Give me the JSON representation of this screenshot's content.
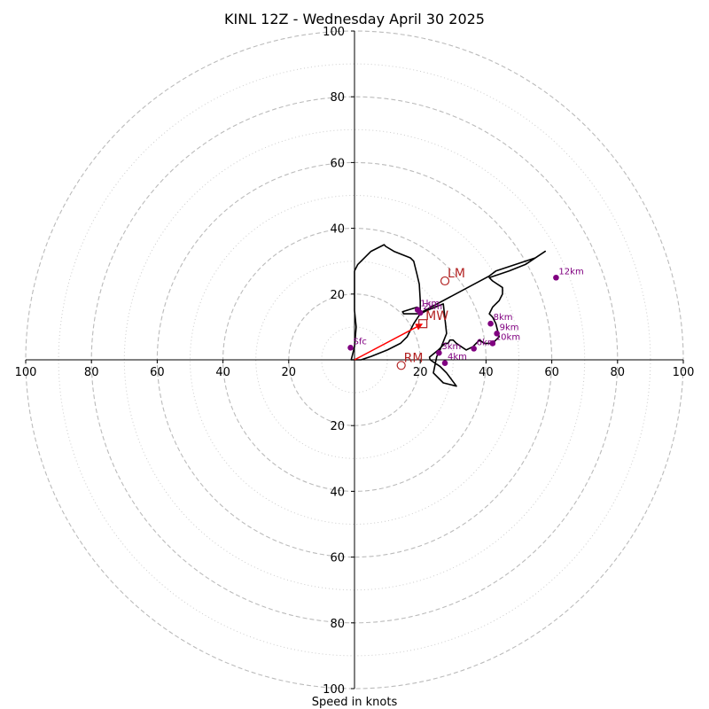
{
  "chart_data": {
    "type": "hodograph",
    "title": "KINL 12Z - Wednesday April 30 2025",
    "xlabel": "Speed in knots",
    "units": "knots",
    "rings": {
      "dashed": [
        20,
        40,
        60,
        80,
        100
      ],
      "dotted": [
        10,
        30,
        50,
        70,
        90
      ]
    },
    "range": [
      -100,
      100
    ],
    "tick_labels": [
      "100",
      "80",
      "60",
      "40",
      "20",
      "20",
      "40",
      "60",
      "80",
      "100"
    ],
    "y_tick_labels": [
      "100",
      "80",
      "60",
      "40",
      "20",
      "20",
      "40",
      "60",
      "80",
      "100"
    ],
    "colors": {
      "trace": "#000000",
      "height_points": "#800080",
      "motion": "#b22222",
      "mean_wind_arrow": "#ff0000",
      "ring": "#bbbbbb"
    },
    "trace": [
      [
        0,
        27
      ],
      [
        0,
        15
      ],
      [
        0.5,
        10
      ],
      [
        0,
        4
      ],
      [
        -1,
        0
      ],
      [
        2,
        0
      ],
      [
        5,
        1
      ],
      [
        10,
        3
      ],
      [
        14,
        5
      ],
      [
        16,
        7
      ],
      [
        18,
        11
      ],
      [
        20,
        14
      ],
      [
        22,
        15
      ],
      [
        27,
        17
      ],
      [
        28,
        8
      ],
      [
        26,
        3
      ],
      [
        25,
        1
      ],
      [
        24,
        -4
      ],
      [
        27,
        -7
      ],
      [
        31,
        -8
      ],
      [
        28,
        -4
      ],
      [
        26,
        -2
      ],
      [
        23,
        0
      ],
      [
        22.8,
        0.8
      ],
      [
        25.5,
        3
      ],
      [
        27.5,
        5
      ],
      [
        28.5,
        5
      ],
      [
        29,
        6
      ],
      [
        30,
        6
      ],
      [
        31,
        5
      ],
      [
        34,
        3
      ],
      [
        36,
        4
      ],
      [
        37,
        5
      ],
      [
        38,
        6
      ],
      [
        39.5,
        5
      ],
      [
        42,
        5
      ],
      [
        44,
        7
      ],
      [
        43,
        11
      ],
      [
        42,
        13
      ],
      [
        41,
        14
      ],
      [
        42,
        16
      ],
      [
        44,
        18
      ],
      [
        45,
        20
      ],
      [
        45,
        22
      ],
      [
        42,
        24
      ],
      [
        41,
        25
      ],
      [
        42.5,
        25.5
      ],
      [
        47,
        27
      ],
      [
        52,
        29
      ],
      [
        58,
        33
      ],
      [
        55,
        31
      ],
      [
        43,
        27
      ],
      [
        41,
        25.5
      ],
      [
        19.5,
        14
      ],
      [
        15,
        14
      ],
      [
        14.6,
        14.6
      ],
      [
        19,
        16
      ],
      [
        20,
        15
      ],
      [
        20,
        18
      ],
      [
        19.7,
        23
      ],
      [
        19,
        26
      ],
      [
        18,
        30
      ],
      [
        17,
        31
      ],
      [
        12,
        33
      ],
      [
        9.5,
        34.5
      ],
      [
        9,
        35
      ],
      [
        5,
        33
      ],
      [
        1,
        29
      ],
      [
        0,
        27
      ]
    ],
    "height_points": [
      {
        "label": "Sfc",
        "u": -1.2,
        "v": 3.7
      },
      {
        "label": "1km",
        "u": 19.2,
        "v": 15.2
      },
      {
        "label": "2km",
        "u": 20,
        "v": 14.3
      },
      {
        "label": "3km",
        "u": 25.7,
        "v": 2.1
      },
      {
        "label": "4km",
        "u": 27.5,
        "v": -1
      },
      {
        "label": "6km",
        "u": 36.3,
        "v": 3.4
      },
      {
        "label": "8km",
        "u": 41.4,
        "v": 11
      },
      {
        "label": "9km",
        "u": 43.3,
        "v": 8
      },
      {
        "label": "10km",
        "u": 42,
        "v": 5
      },
      {
        "label": "12km",
        "u": 61.3,
        "v": 25
      }
    ],
    "storm_motion": [
      {
        "label": "LM",
        "marker": "circle",
        "u": 27.5,
        "v": 24
      },
      {
        "label": "RM",
        "marker": "circle",
        "u": 14.2,
        "v": -1.7
      },
      {
        "label": "MW",
        "marker": "square",
        "u": 20.8,
        "v": 11
      }
    ],
    "mean_wind_vector": {
      "u": 20.8,
      "v": 11
    }
  }
}
